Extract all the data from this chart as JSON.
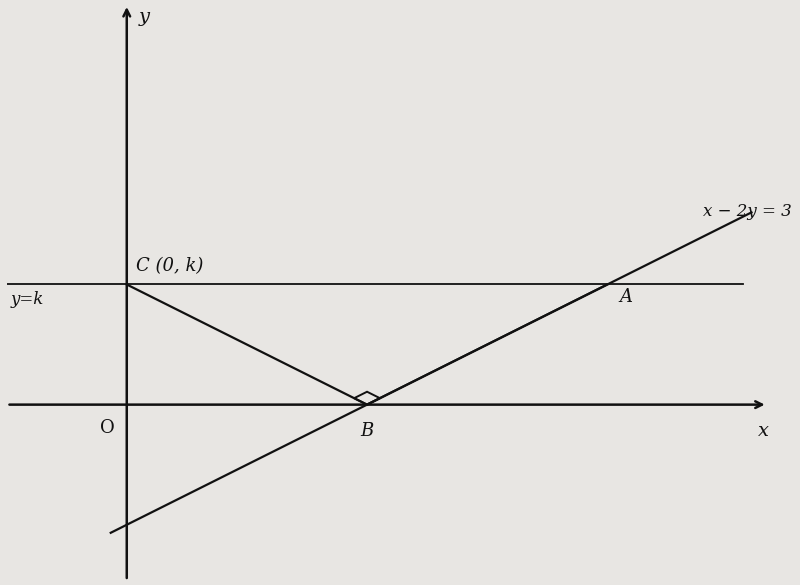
{
  "background_color": "#e8e6e3",
  "xlim": [
    -1.5,
    8.0
  ],
  "ylim": [
    -2.2,
    5.0
  ],
  "k": 1.5,
  "B_x": 3,
  "axis_color": "#111111",
  "line_color": "#111111",
  "label_color": "#111111",
  "xlabel": "x",
  "ylabel": "y",
  "label_x2y3": "x − 2y = 3",
  "label_yk": "y=k",
  "label_C": "C (0, k)",
  "label_A": "A",
  "label_B": "B",
  "label_O": "O",
  "fontsize_axis_label": 14,
  "fontsize_point_label": 13,
  "fontsize_eq_label": 12,
  "lw_axis": 1.8,
  "lw_line": 1.6,
  "sq_size": 0.18
}
